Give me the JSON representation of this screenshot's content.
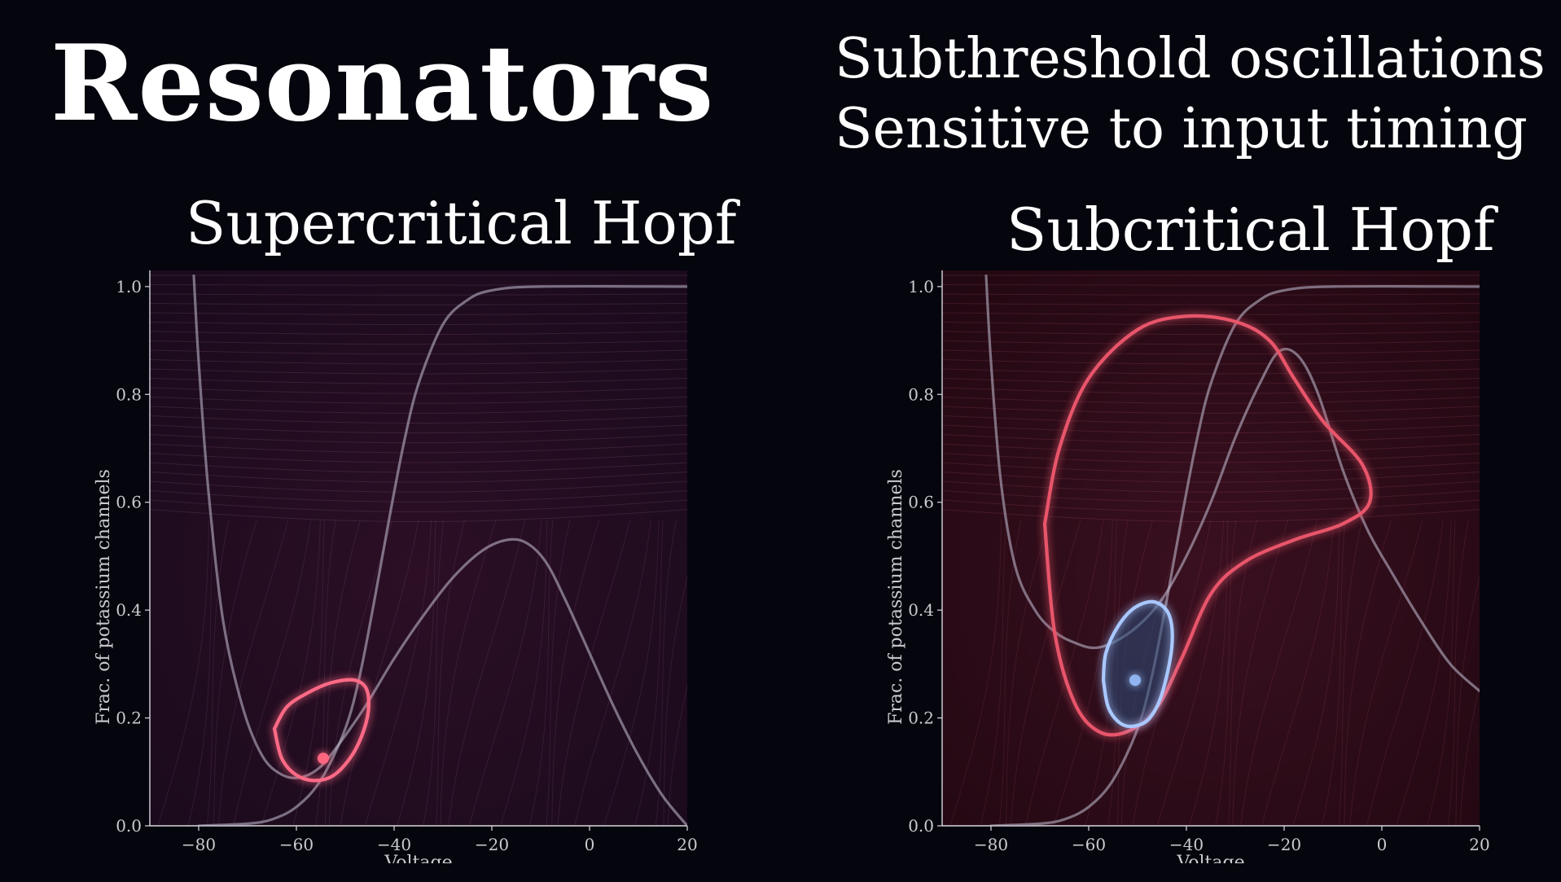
{
  "title": "Resonators",
  "subtitle_lines": [
    "Subthreshold oscillations",
    "Sensitive to input timing"
  ],
  "chart_data": [
    {
      "type": "line",
      "title": "Supercritical Hopf",
      "xlabel": "Voltage",
      "ylabel": "Frac. of potassium channels",
      "xlim": [
        -90,
        20
      ],
      "ylim": [
        0,
        1.03
      ],
      "xticks": [
        -80,
        -60,
        -40,
        -20,
        0,
        20
      ],
      "yticks": [
        0.0,
        0.2,
        0.4,
        0.6,
        0.8,
        1.0
      ],
      "series": [
        {
          "role": "nullcline",
          "color": "#b9b3c6",
          "points": [
            [
              -80,
              0.0
            ],
            [
              -70,
              0.004
            ],
            [
              -65,
              0.012
            ],
            [
              -60,
              0.035
            ],
            [
              -55,
              0.085
            ],
            [
              -50,
              0.18
            ],
            [
              -47,
              0.28
            ],
            [
              -44,
              0.42
            ],
            [
              -41,
              0.57
            ],
            [
              -38,
              0.71
            ],
            [
              -35,
              0.82
            ],
            [
              -30,
              0.93
            ],
            [
              -25,
              0.975
            ],
            [
              -20,
              0.993
            ],
            [
              -10,
              1.0
            ],
            [
              20,
              1.0
            ]
          ]
        },
        {
          "role": "nullcline",
          "color": "#b9b3c6",
          "points": [
            [
              -81,
              1.02
            ],
            [
              -80,
              0.86
            ],
            [
              -78,
              0.62
            ],
            [
              -75,
              0.38
            ],
            [
              -71,
              0.22
            ],
            [
              -67,
              0.13
            ],
            [
              -63,
              0.095
            ],
            [
              -59,
              0.09
            ],
            [
              -55,
              0.11
            ],
            [
              -51,
              0.155
            ],
            [
              -46,
              0.22
            ],
            [
              -40,
              0.31
            ],
            [
              -34,
              0.39
            ],
            [
              -28,
              0.46
            ],
            [
              -22,
              0.51
            ],
            [
              -17,
              0.53
            ],
            [
              -13,
              0.525
            ],
            [
              -9,
              0.49
            ],
            [
              -5,
              0.42
            ],
            [
              0,
              0.32
            ],
            [
              5,
              0.22
            ],
            [
              10,
              0.13
            ],
            [
              15,
              0.055
            ],
            [
              20,
              0.0
            ]
          ]
        },
        {
          "role": "limit-cycle",
          "color": "#ff6b86",
          "points": [
            [
              -64.5,
              0.18
            ],
            [
              -63,
              0.125
            ],
            [
              -60,
              0.094
            ],
            [
              -56,
              0.084
            ],
            [
              -52,
              0.096
            ],
            [
              -48,
              0.14
            ],
            [
              -45.5,
              0.2
            ],
            [
              -45.5,
              0.25
            ],
            [
              -48,
              0.27
            ],
            [
              -53,
              0.265
            ],
            [
              -58,
              0.245
            ],
            [
              -62,
              0.22
            ],
            [
              -64.5,
              0.18
            ]
          ]
        }
      ],
      "markers": [
        {
          "x": -54.5,
          "y": 0.125,
          "color": "#ff6680"
        }
      ]
    },
    {
      "type": "line",
      "title": "Subcritical Hopf",
      "xlabel": "Voltage",
      "ylabel": "Frac. of potassium channels",
      "xlim": [
        -90,
        20
      ],
      "ylim": [
        0,
        1.03
      ],
      "xticks": [
        -80,
        -60,
        -40,
        -20,
        0,
        20
      ],
      "yticks": [
        0.0,
        0.2,
        0.4,
        0.6,
        0.8,
        1.0
      ],
      "series": [
        {
          "role": "nullcline",
          "color": "#b9b3c6",
          "points": [
            [
              -80,
              0.0
            ],
            [
              -70,
              0.004
            ],
            [
              -65,
              0.012
            ],
            [
              -60,
              0.035
            ],
            [
              -55,
              0.085
            ],
            [
              -50,
              0.18
            ],
            [
              -47,
              0.28
            ],
            [
              -44,
              0.42
            ],
            [
              -41,
              0.57
            ],
            [
              -38,
              0.71
            ],
            [
              -35,
              0.82
            ],
            [
              -30,
              0.93
            ],
            [
              -25,
              0.975
            ],
            [
              -20,
              0.993
            ],
            [
              -10,
              1.0
            ],
            [
              20,
              1.0
            ]
          ]
        },
        {
          "role": "nullcline",
          "color": "#b9b3c6",
          "points": [
            [
              -81,
              1.02
            ],
            [
              -80,
              0.86
            ],
            [
              -78,
              0.64
            ],
            [
              -75,
              0.48
            ],
            [
              -71,
              0.4
            ],
            [
              -67,
              0.36
            ],
            [
              -63,
              0.34
            ],
            [
              -59,
              0.33
            ],
            [
              -55,
              0.34
            ],
            [
              -50,
              0.37
            ],
            [
              -45,
              0.42
            ],
            [
              -40,
              0.5
            ],
            [
              -35,
              0.6
            ],
            [
              -30,
              0.72
            ],
            [
              -25,
              0.82
            ],
            [
              -21,
              0.88
            ],
            [
              -17,
              0.87
            ],
            [
              -13,
              0.8
            ],
            [
              -8,
              0.66
            ],
            [
              -3,
              0.55
            ],
            [
              2,
              0.47
            ],
            [
              8,
              0.38
            ],
            [
              14,
              0.3
            ],
            [
              20,
              0.25
            ]
          ]
        },
        {
          "role": "limit-cycle",
          "color": "#e8546a",
          "points": [
            [
              -69,
              0.56
            ],
            [
              -67,
              0.36
            ],
            [
              -63,
              0.23
            ],
            [
              -58,
              0.175
            ],
            [
              -52,
              0.175
            ],
            [
              -46,
              0.22
            ],
            [
              -41,
              0.31
            ],
            [
              -35,
              0.43
            ],
            [
              -28,
              0.49
            ],
            [
              -18,
              0.53
            ],
            [
              -8,
              0.56
            ],
            [
              -2.5,
              0.6
            ],
            [
              -4,
              0.67
            ],
            [
              -12,
              0.75
            ],
            [
              -18,
              0.83
            ],
            [
              -23,
              0.9
            ],
            [
              -30,
              0.935
            ],
            [
              -40,
              0.945
            ],
            [
              -50,
              0.92
            ],
            [
              -60,
              0.83
            ],
            [
              -66,
              0.7
            ],
            [
              -69,
              0.56
            ]
          ]
        },
        {
          "role": "unstable-cycle",
          "color": "#a9c8ff",
          "points": [
            [
              -57,
              0.27
            ],
            [
              -56,
              0.22
            ],
            [
              -53.5,
              0.19
            ],
            [
              -50.5,
              0.185
            ],
            [
              -47.5,
              0.2
            ],
            [
              -45,
              0.245
            ],
            [
              -43,
              0.33
            ],
            [
              -43.5,
              0.39
            ],
            [
              -46.5,
              0.415
            ],
            [
              -50.5,
              0.405
            ],
            [
              -54,
              0.37
            ],
            [
              -56.5,
              0.32
            ],
            [
              -57,
              0.27
            ]
          ]
        }
      ],
      "markers": [
        {
          "x": -50.5,
          "y": 0.27,
          "color": "#8fb4f0"
        }
      ]
    }
  ]
}
